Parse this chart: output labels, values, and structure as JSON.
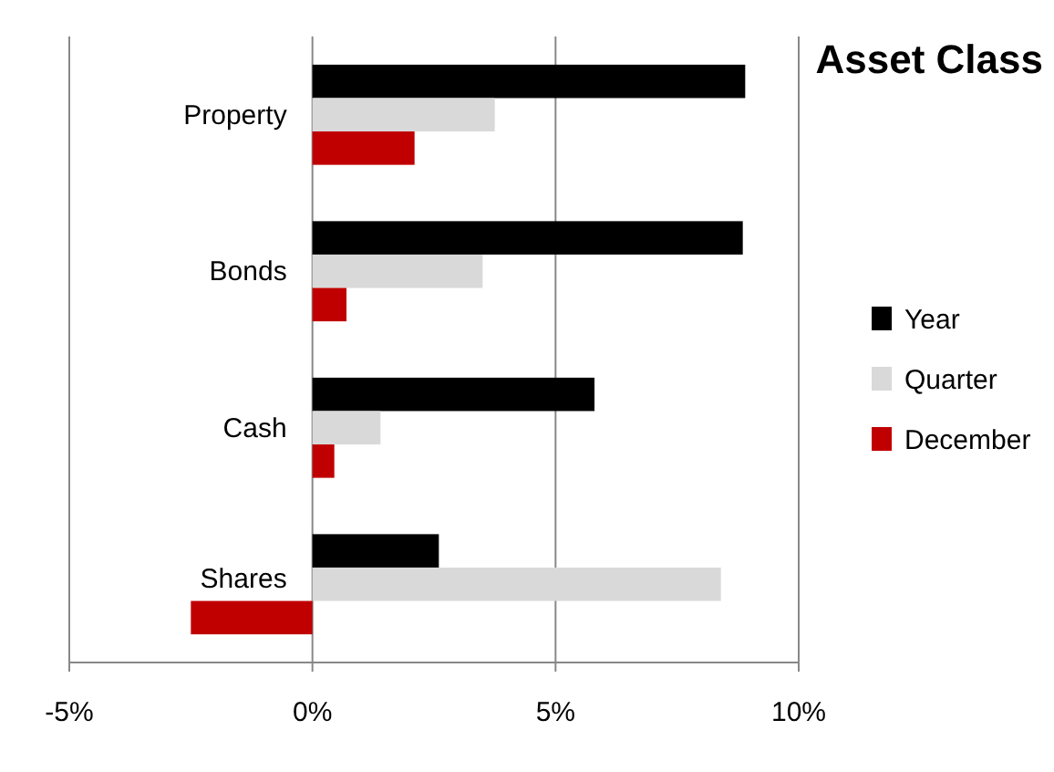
{
  "chart_data": {
    "type": "bar",
    "orientation": "horizontal",
    "title": "Asset Class",
    "categories": [
      "Property",
      "Bonds",
      "Cash",
      "Shares"
    ],
    "series": [
      {
        "name": "Year",
        "color": "#000000",
        "values": [
          8.9,
          8.85,
          5.8,
          2.6
        ]
      },
      {
        "name": "Quarter",
        "color": "#d9d9d9",
        "values": [
          3.75,
          3.5,
          1.4,
          8.4
        ]
      },
      {
        "name": "December",
        "color": "#c00000",
        "values": [
          2.1,
          0.7,
          0.45,
          -2.5
        ]
      }
    ],
    "xlim": [
      -5,
      10
    ],
    "xticks": [
      {
        "value": -5,
        "label": "-5%"
      },
      {
        "value": 0,
        "label": "0%"
      },
      {
        "value": 5,
        "label": "5%"
      },
      {
        "value": 10,
        "label": "10%"
      }
    ],
    "grid": "x",
    "legend": "right"
  }
}
